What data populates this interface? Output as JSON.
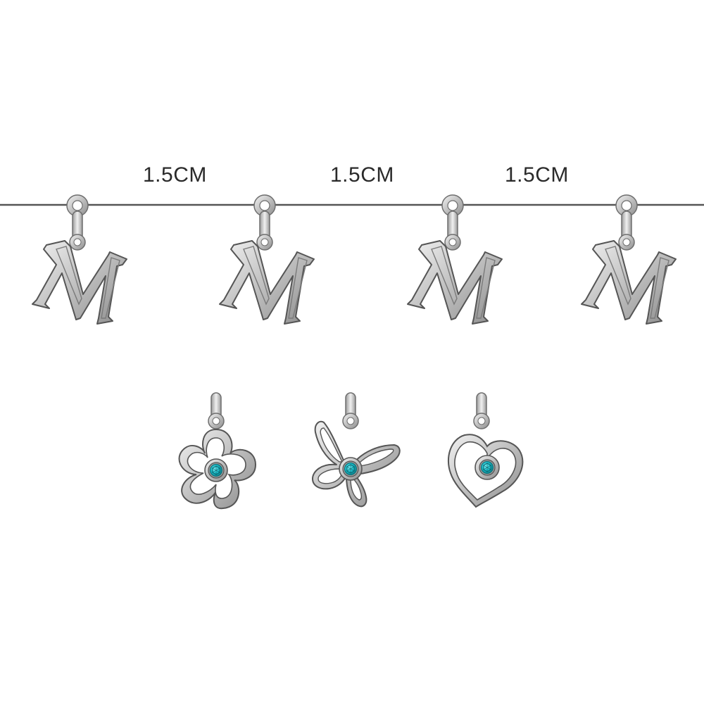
{
  "spacing": {
    "label_1": "1.5CM",
    "label_2": "1.5CM",
    "label_3": "1.5CM"
  },
  "letter_charms": {
    "letter": "M",
    "count": 4
  },
  "accent_charms": [
    {
      "shape": "flower-icon",
      "stone": "gem-icon"
    },
    {
      "shape": "butterfly-icon",
      "stone": "gem-icon"
    },
    {
      "shape": "heart-icon",
      "stone": "gem-icon"
    }
  ],
  "colors": {
    "metal": "#c9c9c9",
    "metal_dark": "#6e6e6e",
    "chain": "#555555",
    "gem": "#17b7c4",
    "gem_dark": "#0b6f78"
  }
}
